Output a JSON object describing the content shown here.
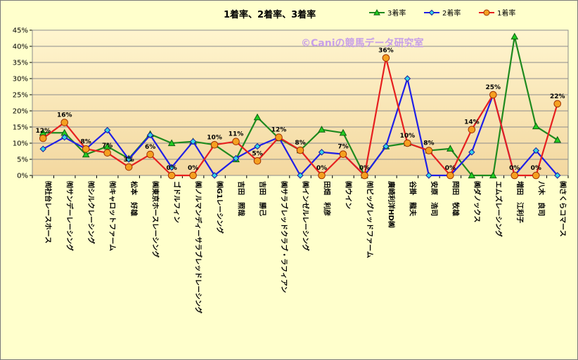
{
  "chart_data": {
    "type": "line",
    "title": "1着率、2着率、3着率",
    "watermark": "©Caniの競馬データ研究室",
    "xlabel": "",
    "ylabel": "",
    "ylim": [
      0,
      45
    ],
    "y_tick_labels": [
      "0%",
      "5%",
      "10%",
      "15%",
      "20%",
      "25%",
      "30%",
      "35%",
      "40%",
      "45%"
    ],
    "grid": true,
    "legend_position": "top-right",
    "categories": [
      "㈲社台レースホース",
      "㈲サンデーレーシング",
      "㈲シルクレーシング",
      "㈲キャロットファーム",
      "松本　好雄",
      "㈱東京ホースレーシング",
      "ゴドルフィン",
      "㈱ノルマンディーサラブレッドレーシング",
      "㈱G1レーシング",
      "吉田　照哉",
      "吉田　勝己",
      "㈱サラブレッドクラブ・ラフィアン",
      "㈱インゼルレーシング",
      "田畑　利彦",
      "㈱ウイン",
      "㈲ビッグレッドファーム",
      "廣崎利洋HD㈱",
      "谷掛　龍夫",
      "安原　浩司",
      "岡田　牧雄",
      "㈱ダノックス",
      "エムズレーシング",
      "増田　江利子",
      "八木　良司",
      "㈱さくらコマース"
    ],
    "series": [
      {
        "name": "3着率",
        "color": "#1f8a1f",
        "marker": "triangle",
        "marker_fill": "#22cc22",
        "values": [
          13.2,
          13.2,
          6.5,
          9.0,
          5.2,
          12.8,
          10.0,
          10.5,
          9.5,
          5.0,
          18.0,
          11.5,
          7.8,
          14.2,
          13.2,
          0,
          9.0,
          10.0,
          7.7,
          8.3,
          0,
          0,
          43.0,
          15.2,
          11.0
        ]
      },
      {
        "name": "2着率",
        "color": "#1f1fe6",
        "marker": "diamond",
        "marker_fill": "#33d6e6",
        "values": [
          8.2,
          11.8,
          8.2,
          14.0,
          5.0,
          12.5,
          2.5,
          10.5,
          0,
          5.3,
          9.0,
          11.8,
          0,
          7.2,
          6.6,
          0,
          9.0,
          30.0,
          0,
          0,
          7.2,
          25.0,
          0,
          7.7,
          0
        ]
      },
      {
        "name": "1着率",
        "color": "#e61f1f",
        "marker": "circle",
        "marker_fill": "#f5a020",
        "values": [
          11.5,
          16.4,
          8.2,
          7.0,
          2.6,
          6.5,
          0,
          0,
          9.5,
          10.5,
          4.5,
          11.8,
          7.8,
          0,
          6.6,
          0,
          36.4,
          10.0,
          7.7,
          0,
          14.2,
          25.0,
          0,
          0,
          22.2
        ]
      }
    ],
    "data_labels": [
      "12%",
      "16%",
      "8%",
      "7%",
      "3%",
      "6%",
      "0%",
      "0%",
      "10%",
      "11%",
      "5%",
      "12%",
      "8%",
      "0%",
      "7%",
      "0%",
      "36%",
      "10%",
      "8%",
      "0%",
      "14%",
      "25%",
      "0%",
      "0%",
      "22%"
    ]
  }
}
